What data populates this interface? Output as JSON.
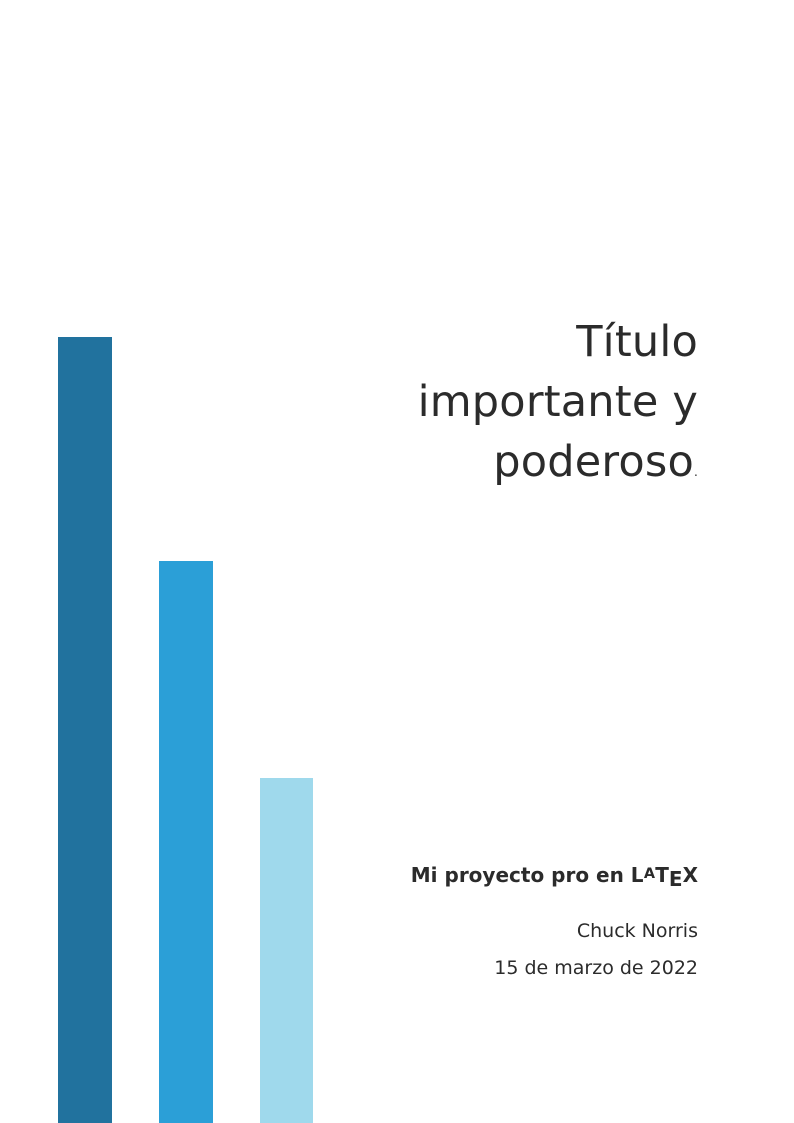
{
  "colors": {
    "bar_dark": "#21729e",
    "bar_mid": "#2b9fd7",
    "bar_light": "#9fd9ec",
    "text": "#2b2b2b"
  },
  "decorative_bars": [
    {
      "level": 0.7
    },
    {
      "level": 0.5
    },
    {
      "level": 0.307
    }
  ],
  "title": {
    "line1": "Título",
    "line2": "importante y",
    "line3": "poderoso",
    "period": "."
  },
  "subtitle": {
    "text": "Mi proyecto pro en",
    "logo": "LaTeX",
    "logo_parts": {
      "l": "L",
      "a": "A",
      "t": "T",
      "e": "E",
      "x": "X"
    }
  },
  "author": "Chuck Norris",
  "date": "15 de marzo de 2022"
}
